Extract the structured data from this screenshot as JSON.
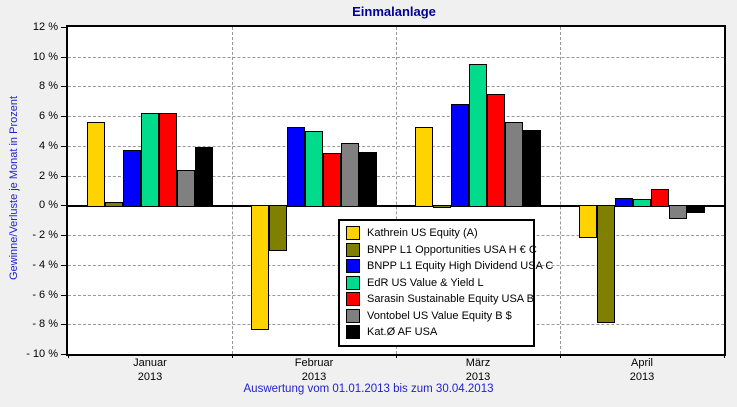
{
  "title": "Einmalanlage",
  "ylabel": "Gewinne/Verluste je Monat in Prozent",
  "footer": "Auswertung vom 01.01.2013 bis zum 30.04.2013",
  "colors": {
    "background": "#F0F0F0",
    "plot_background": "#FFFFFF",
    "grid": "#999999",
    "axis": "#000000",
    "title_text": "#000099",
    "caption_text": "#2222CC"
  },
  "chart_data": {
    "type": "bar",
    "categories": [
      "Januar",
      "Februar",
      "März",
      "April"
    ],
    "category_year": "2013",
    "series": [
      {
        "name": "Kathrein US Equity (A)",
        "color": "#FFD300",
        "values": [
          5.6,
          -8.4,
          5.3,
          -2.2
        ]
      },
      {
        "name": "BNPP L1 Opportunities USA H € C",
        "color": "#808000",
        "values": [
          0.2,
          -3.1,
          -0.2,
          -7.9
        ]
      },
      {
        "name": "BNPP L1 Equity High Dividend USA C",
        "color": "#0000FF",
        "values": [
          3.7,
          5.3,
          6.8,
          0.5
        ]
      },
      {
        "name": "EdR US Value & Yield L",
        "color": "#00DC8C",
        "values": [
          6.2,
          5.0,
          9.5,
          0.4
        ]
      },
      {
        "name": "Sarasin Sustainable Equity USA B",
        "color": "#FF0000",
        "values": [
          6.2,
          3.5,
          7.5,
          1.1
        ]
      },
      {
        "name": "Vontobel US Value Equity B $",
        "color": "#808080",
        "values": [
          2.4,
          4.2,
          5.6,
          -0.9
        ]
      },
      {
        "name": "Kat.Ø AF USA",
        "color": "#000000",
        "values": [
          3.9,
          3.6,
          5.1,
          -0.5
        ]
      }
    ],
    "ylim": [
      -10,
      12
    ],
    "ytick_step": 2,
    "ytick_labels": [
      "12 %",
      "10 %",
      "8 %",
      "6 %",
      "4 %",
      "2 %",
      "0 %",
      "- 2 %",
      "- 4 %",
      "- 6 %",
      "- 8 %",
      "- 10 %"
    ],
    "grid": true,
    "legend_position": "inside-lower-center"
  }
}
